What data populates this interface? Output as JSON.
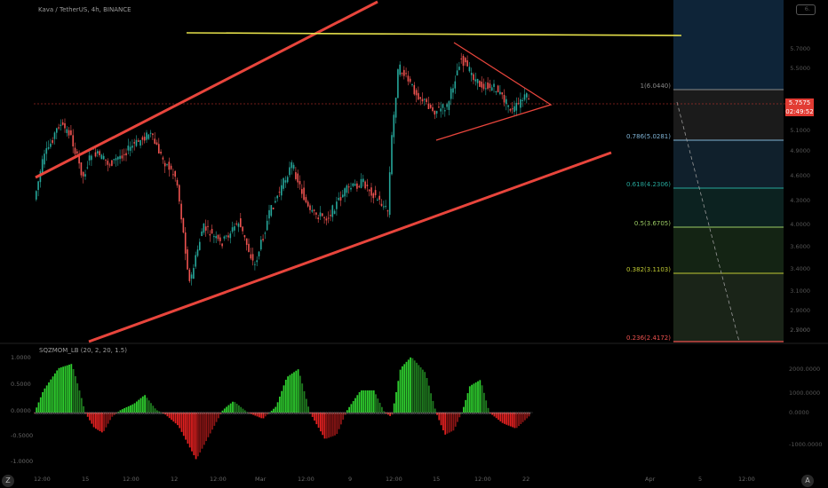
{
  "header": {
    "symbol": "Kava / TetherUS, 4h, BINANCE"
  },
  "indicator": {
    "title": "SQZMOM_LB (20, 2, 20, 1.5)"
  },
  "price_axis": {
    "labels": [
      "6.",
      "5.7000",
      "5.5000",
      "5.1000",
      "4.9000",
      "4.6000",
      "4.3000",
      "4.0000",
      "3.6000",
      "3.4000",
      "3.1000",
      "2.9000",
      "2.7000",
      "2.5000"
    ],
    "current_price": "5.7575",
    "countdown": "02:49:52"
  },
  "indicator_axis": {
    "left_labels": [
      "1.0000",
      "0.5000",
      "0.0000",
      "-0.5000",
      "-1.0000"
    ],
    "right_labels": [
      "2000.0000",
      "1000.0000",
      "0.0000",
      "-1000.0000"
    ]
  },
  "time_axis": {
    "labels": [
      "12:00",
      "15",
      "12:00",
      "12",
      "12:00",
      "Mar",
      "12:00",
      "9",
      "12:00",
      "15",
      "12:00",
      "22",
      "Apr",
      "5",
      "12:00"
    ]
  },
  "fib_levels": [
    {
      "label": "1(6.0440)",
      "color": "#8a8a8a"
    },
    {
      "label": "0.786(5.0281)",
      "color": "#7fb3d5"
    },
    {
      "label": "0.618(4.2306)",
      "color": "#26a69a"
    },
    {
      "label": "0.5(3.6705)",
      "color": "#9ccc65"
    },
    {
      "label": "0.382(3.1103)",
      "color": "#c0ca33"
    },
    {
      "label": "0.236(2.4172)",
      "color": "#ef5350"
    }
  ],
  "corner_buttons": {
    "left": "Z",
    "right": "A"
  },
  "colors": {
    "trendline": "#e8453c",
    "resistance": "#e5e04a",
    "candle_up": "#26a69a",
    "candle_down": "#ef5350",
    "momentum_up": "#2ecc2e",
    "momentum_down": "#e02020"
  }
}
